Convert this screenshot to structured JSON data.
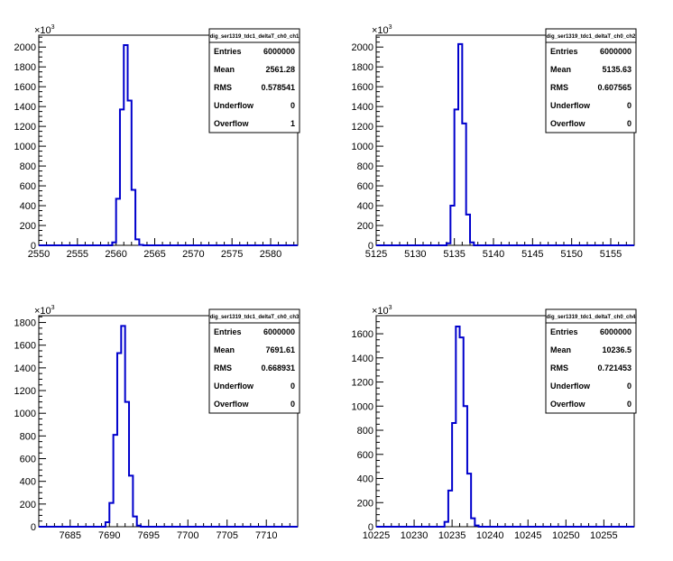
{
  "panels": [
    {
      "stats": {
        "title": "dig_ser1319_tdc1_deltaT_ch0_ch1",
        "rows": [
          {
            "label": "Entries",
            "value": "6000000"
          },
          {
            "label": "Mean",
            "value": "2561.28"
          },
          {
            "label": "RMS",
            "value": "0.578541"
          },
          {
            "label": "Underflow",
            "value": "0"
          },
          {
            "label": "Overflow",
            "value": "1"
          }
        ]
      },
      "multiplier": "×10",
      "multiplier_exp": "3"
    },
    {
      "stats": {
        "title": "dig_ser1319_tdc1_deltaT_ch0_ch2",
        "rows": [
          {
            "label": "Entries",
            "value": "6000000"
          },
          {
            "label": "Mean",
            "value": "5135.63"
          },
          {
            "label": "RMS",
            "value": "0.607565"
          },
          {
            "label": "Underflow",
            "value": "0"
          },
          {
            "label": "Overflow",
            "value": "0"
          }
        ]
      },
      "multiplier": "×10",
      "multiplier_exp": "3"
    },
    {
      "stats": {
        "title": "dig_ser1319_tdc1_deltaT_ch0_ch3",
        "rows": [
          {
            "label": "Entries",
            "value": "6000000"
          },
          {
            "label": "Mean",
            "value": "7691.61"
          },
          {
            "label": "RMS",
            "value": "0.668931"
          },
          {
            "label": "Underflow",
            "value": "0"
          },
          {
            "label": "Overflow",
            "value": "0"
          }
        ]
      },
      "multiplier": "×10",
      "multiplier_exp": "3"
    },
    {
      "stats": {
        "title": "dig_ser1319_tdc1_deltaT_ch0_ch4",
        "rows": [
          {
            "label": "Entries",
            "value": "6000000"
          },
          {
            "label": "Mean",
            "value": "10236.5"
          },
          {
            "label": "RMS",
            "value": "0.721453"
          },
          {
            "label": "Underflow",
            "value": "0"
          },
          {
            "label": "Overflow",
            "value": "0"
          }
        ]
      },
      "multiplier": "×10",
      "multiplier_exp": "3"
    }
  ],
  "chart_data": [
    {
      "type": "histogram",
      "line_color": "#0000cc",
      "xlim": [
        2550,
        2583.5
      ],
      "ylim": [
        0,
        2120
      ],
      "xticks": [
        2550,
        2555,
        2560,
        2565,
        2570,
        2575,
        2580
      ],
      "xtick_labels": [
        "2550",
        "2555",
        "2560",
        "2565",
        "2570",
        "2575",
        "2580"
      ],
      "yticks": [
        0,
        200,
        400,
        600,
        800,
        1000,
        1200,
        1400,
        1600,
        1800,
        2000
      ],
      "ytick_labels": [
        "0",
        "200",
        "400",
        "600",
        "800",
        "1000",
        "1200",
        "1400",
        "1600",
        "1800",
        "2000"
      ],
      "bin_width": 0.5,
      "bins": [
        {
          "x": 2559.5,
          "y": 30
        },
        {
          "x": 2560.0,
          "y": 470
        },
        {
          "x": 2560.5,
          "y": 1370
        },
        {
          "x": 2561.0,
          "y": 2020
        },
        {
          "x": 2561.5,
          "y": 1460
        },
        {
          "x": 2562.0,
          "y": 560
        },
        {
          "x": 2562.5,
          "y": 60
        },
        {
          "x": 2563.0,
          "y": 5
        }
      ]
    },
    {
      "type": "histogram",
      "line_color": "#0000cc",
      "xlim": [
        5125,
        5158
      ],
      "ylim": [
        0,
        2120
      ],
      "xticks": [
        5125,
        5130,
        5135,
        5140,
        5145,
        5150,
        5155
      ],
      "xtick_labels": [
        "5125",
        "5130",
        "5135",
        "5140",
        "5145",
        "5150",
        "5155"
      ],
      "yticks": [
        0,
        200,
        400,
        600,
        800,
        1000,
        1200,
        1400,
        1600,
        1800,
        2000
      ],
      "ytick_labels": [
        "0",
        "200",
        "400",
        "600",
        "800",
        "1000",
        "1200",
        "1400",
        "1600",
        "1800",
        "2000"
      ],
      "bin_width": 0.5,
      "bins": [
        {
          "x": 5134.0,
          "y": 20
        },
        {
          "x": 5134.5,
          "y": 400
        },
        {
          "x": 5135.0,
          "y": 1370
        },
        {
          "x": 5135.5,
          "y": 2030
        },
        {
          "x": 5136.0,
          "y": 1230
        },
        {
          "x": 5136.5,
          "y": 310
        },
        {
          "x": 5137.0,
          "y": 30
        }
      ]
    },
    {
      "type": "histogram",
      "line_color": "#0000cc",
      "xlim": [
        7681,
        7714
      ],
      "ylim": [
        0,
        1860
      ],
      "xticks": [
        7685,
        7690,
        7695,
        7700,
        7705,
        7710
      ],
      "xtick_labels": [
        "7685",
        "7690",
        "7695",
        "7700",
        "7705",
        "7710"
      ],
      "yticks": [
        0,
        200,
        400,
        600,
        800,
        1000,
        1200,
        1400,
        1600,
        1800
      ],
      "ytick_labels": [
        "0",
        "200",
        "400",
        "600",
        "800",
        "1000",
        "1200",
        "1400",
        "1600",
        "1800"
      ],
      "bin_width": 0.5,
      "bins": [
        {
          "x": 7689.5,
          "y": 40
        },
        {
          "x": 7690.0,
          "y": 210
        },
        {
          "x": 7690.5,
          "y": 810
        },
        {
          "x": 7691.0,
          "y": 1530
        },
        {
          "x": 7691.5,
          "y": 1770
        },
        {
          "x": 7692.0,
          "y": 1100
        },
        {
          "x": 7692.5,
          "y": 450
        },
        {
          "x": 7693.0,
          "y": 90
        },
        {
          "x": 7693.5,
          "y": 10
        }
      ]
    },
    {
      "type": "histogram",
      "line_color": "#0000cc",
      "xlim": [
        10225,
        10259
      ],
      "ylim": [
        0,
        1750
      ],
      "xticks": [
        10225,
        10230,
        10235,
        10240,
        10245,
        10250,
        10255
      ],
      "xtick_labels": [
        "10225",
        "10230",
        "10235",
        "10240",
        "10245",
        "10250",
        "10255"
      ],
      "yticks": [
        0,
        200,
        400,
        600,
        800,
        1000,
        1200,
        1400,
        1600
      ],
      "ytick_labels": [
        "0",
        "200",
        "400",
        "600",
        "800",
        "1000",
        "1200",
        "1400",
        "1600"
      ],
      "bin_width": 0.5,
      "bins": [
        {
          "x": 10234.0,
          "y": 40
        },
        {
          "x": 10234.5,
          "y": 300
        },
        {
          "x": 10235.0,
          "y": 860
        },
        {
          "x": 10235.5,
          "y": 1660
        },
        {
          "x": 10236.0,
          "y": 1570
        },
        {
          "x": 10236.5,
          "y": 1000
        },
        {
          "x": 10237.0,
          "y": 440
        },
        {
          "x": 10237.5,
          "y": 70
        },
        {
          "x": 10238.0,
          "y": 10
        }
      ]
    }
  ]
}
